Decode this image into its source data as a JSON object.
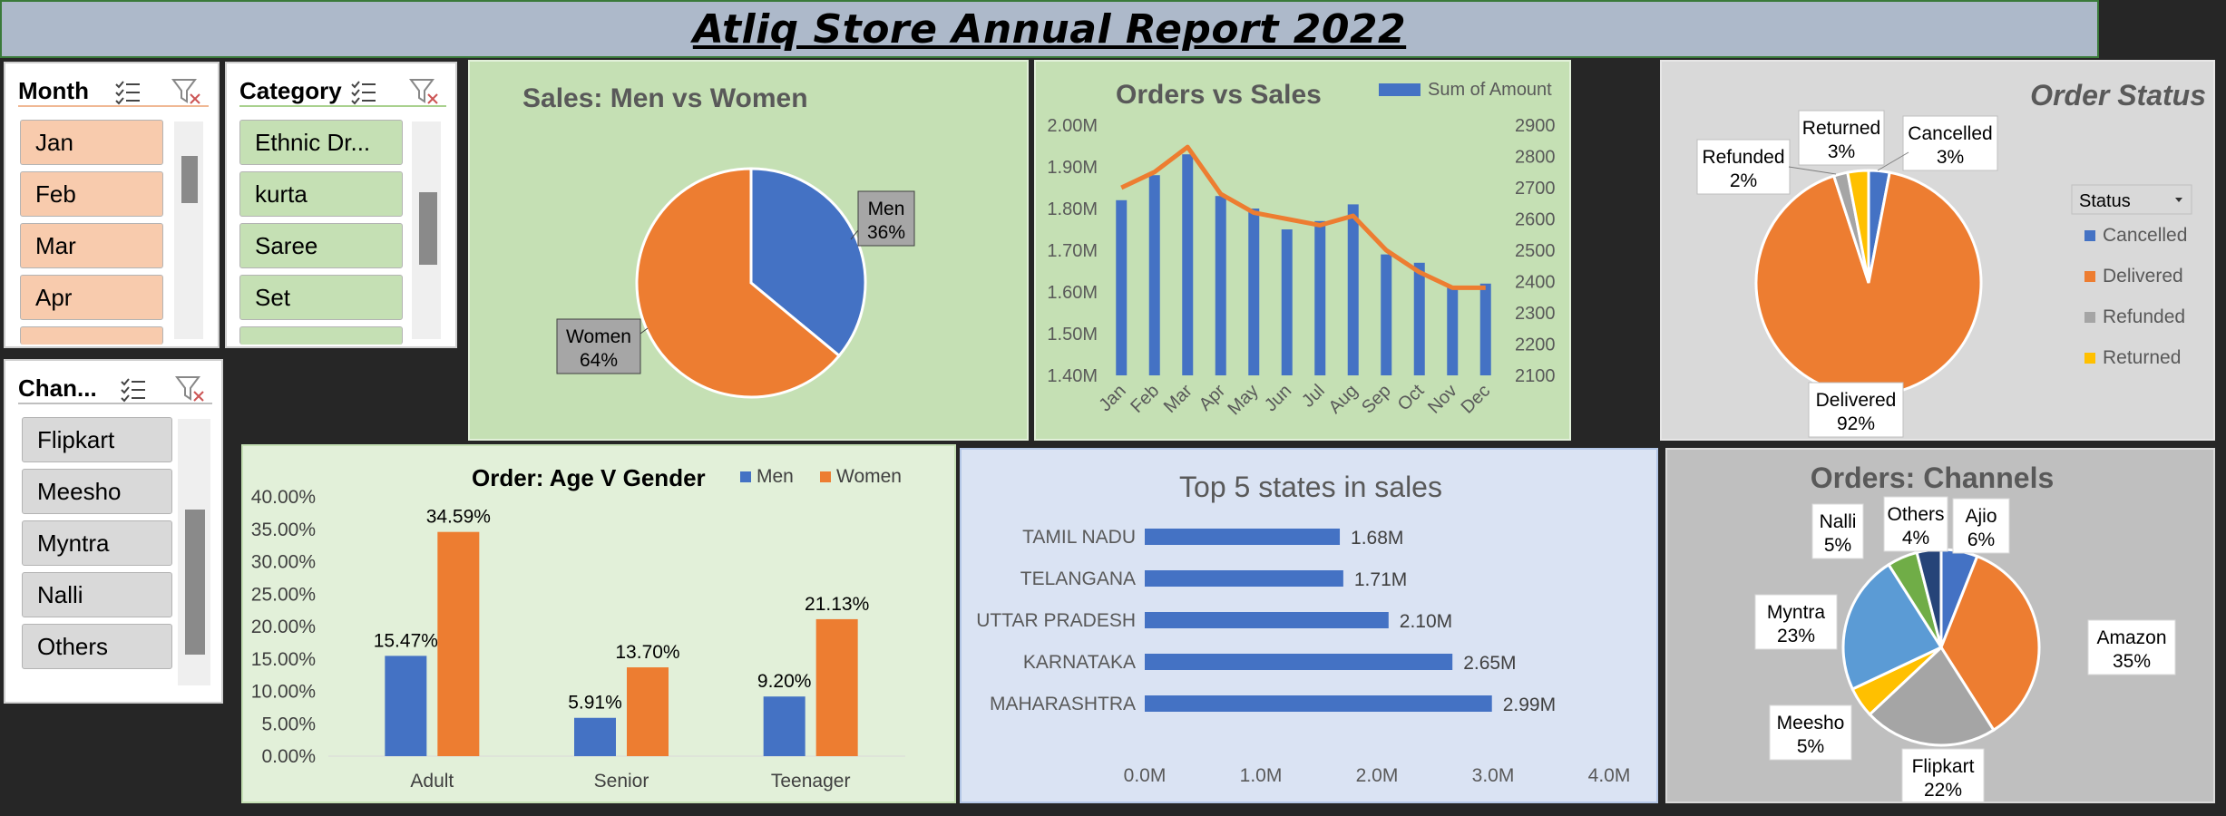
{
  "header": {
    "title": "Atliq Store Annual Report 2022"
  },
  "slicers": {
    "month": {
      "title": "Month",
      "items": [
        "Jan",
        "Feb",
        "Mar",
        "Apr"
      ]
    },
    "category": {
      "title": "Category",
      "items": [
        "Ethnic Dr...",
        "kurta",
        "Saree",
        "Set"
      ]
    },
    "channel": {
      "title": "Chan...",
      "items": [
        "Flipkart",
        "Meesho",
        "Myntra",
        "Nalli",
        "Others"
      ]
    }
  },
  "colors": {
    "blue": "#4472c4",
    "orange": "#ed7d31",
    "grey": "#a5a5a5",
    "yellow": "#ffc000",
    "lightblue": "#5b9bd5",
    "green": "#70ad47",
    "navy": "#264478"
  },
  "chart_data": [
    {
      "id": "sales_gender",
      "type": "pie",
      "title": "Sales: Men vs Women",
      "labels": [
        "Men",
        "Women"
      ],
      "values": [
        36,
        64
      ],
      "value_labels": [
        "36%",
        "64%"
      ]
    },
    {
      "id": "orders_sales",
      "type": "bar",
      "title": "Orders vs Sales",
      "categories": [
        "Jan",
        "Feb",
        "Mar",
        "Apr",
        "May",
        "Jun",
        "Jul",
        "Aug",
        "Sep",
        "Oct",
        "Nov",
        "Dec"
      ],
      "series": [
        {
          "name": "Sum of Amount",
          "type": "bar",
          "axis": "left",
          "values": [
            1.82,
            1.88,
            1.93,
            1.83,
            1.8,
            1.75,
            1.77,
            1.81,
            1.69,
            1.67,
            1.61,
            1.62
          ]
        },
        {
          "type": "line",
          "axis": "right",
          "values": [
            2700,
            2750,
            2830,
            2680,
            2620,
            2600,
            2580,
            2610,
            2500,
            2430,
            2380,
            2380
          ]
        }
      ],
      "ylim": [
        1.4,
        2.0
      ],
      "y_ticks": [
        "1.40M",
        "1.50M",
        "1.60M",
        "1.70M",
        "1.80M",
        "1.90M",
        "2.00M"
      ],
      "y2lim": [
        2100,
        2900
      ],
      "y2_ticks": [
        "2100",
        "2200",
        "2300",
        "2400",
        "2500",
        "2600",
        "2700",
        "2800",
        "2900"
      ]
    },
    {
      "id": "order_status",
      "type": "pie",
      "title": "Order Status",
      "legend_title": "Status",
      "labels": [
        "Cancelled",
        "Delivered",
        "Refunded",
        "Returned"
      ],
      "values": [
        3,
        92,
        2,
        3
      ],
      "value_labels": [
        "3%",
        "92%",
        "2%",
        "3%"
      ]
    },
    {
      "id": "age_gender",
      "type": "bar",
      "title": "Order: Age V Gender",
      "categories": [
        "Adult",
        "Senior",
        "Teenager"
      ],
      "series": [
        {
          "name": "Men",
          "values": [
            15.47,
            5.91,
            9.2
          ],
          "labels": [
            "15.47%",
            "5.91%",
            "9.20%"
          ]
        },
        {
          "name": "Women",
          "values": [
            34.59,
            13.7,
            21.13
          ],
          "labels": [
            "34.59%",
            "13.70%",
            "21.13%"
          ]
        }
      ],
      "ylim": [
        0,
        40
      ],
      "y_ticks": [
        "0.00%",
        "5.00%",
        "10.00%",
        "15.00%",
        "20.00%",
        "25.00%",
        "30.00%",
        "35.00%",
        "40.00%"
      ]
    },
    {
      "id": "top_states",
      "type": "bar",
      "orientation": "horizontal",
      "title": "Top 5 states in sales",
      "categories": [
        "TAMIL NADU",
        "TELANGANA",
        "UTTAR PRADESH",
        "KARNATAKA",
        "MAHARASHTRA"
      ],
      "values": [
        1.68,
        1.71,
        2.1,
        2.65,
        2.99
      ],
      "value_labels": [
        "1.68M",
        "1.71M",
        "2.10M",
        "2.65M",
        "2.99M"
      ],
      "xlim": [
        0,
        4
      ],
      "x_ticks": [
        "0.0M",
        "1.0M",
        "2.0M",
        "3.0M",
        "4.0M"
      ]
    },
    {
      "id": "channels",
      "type": "pie",
      "title": "Orders: Channels",
      "labels": [
        "Ajio",
        "Amazon",
        "Flipkart",
        "Meesho",
        "Myntra",
        "Nalli",
        "Others"
      ],
      "values": [
        6,
        35,
        22,
        5,
        23,
        5,
        4
      ],
      "value_labels": [
        "6%",
        "35%",
        "22%",
        "5%",
        "23%",
        "5%",
        "4%"
      ]
    }
  ]
}
